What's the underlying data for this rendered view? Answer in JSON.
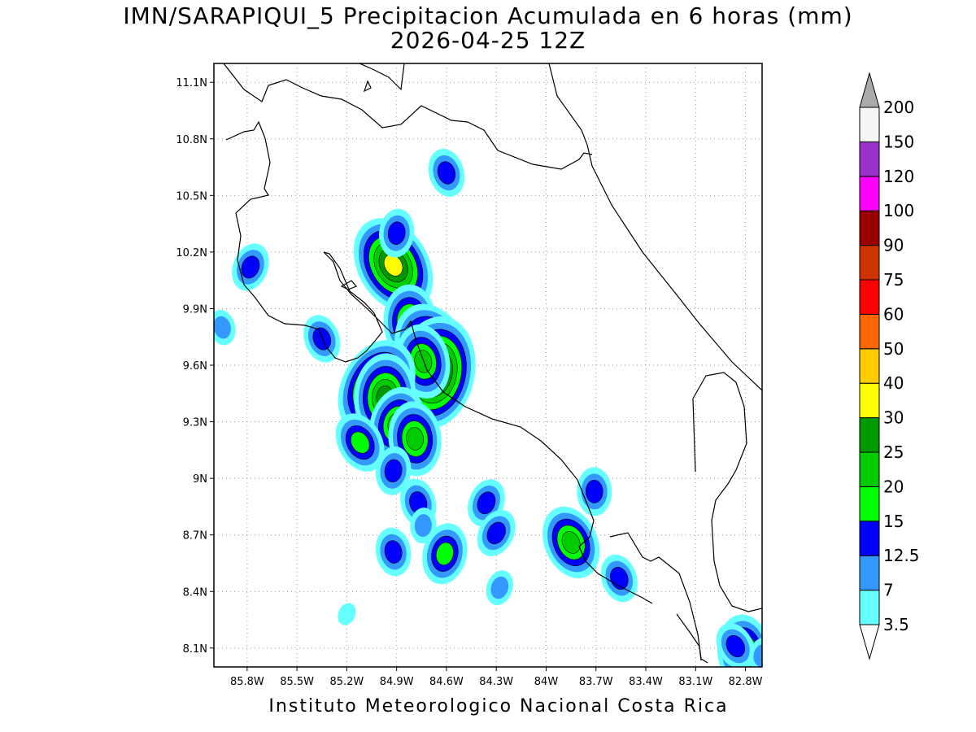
{
  "title": "IMN/SARAPIQUI_5 Precipitacion Acumulada en 6 horas (mm)",
  "subtitle": "2026-04-25 12Z",
  "footer": "Instituto Meteorologico Nacional Costa Rica",
  "map": {
    "lon_range": [
      -86.0,
      -82.7
    ],
    "lat_range": [
      8.0,
      11.2
    ],
    "grid": true,
    "lat_ticks": [
      "11.1N",
      "10.8N",
      "10.5N",
      "10.2N",
      "9.9N",
      "9.6N",
      "9.3N",
      "9N",
      "8.7N",
      "8.4N",
      "8.1N"
    ],
    "lat_values": [
      11.1,
      10.8,
      10.5,
      10.2,
      9.9,
      9.6,
      9.3,
      9.0,
      8.7,
      8.4,
      8.1
    ],
    "lon_ticks": [
      "85.8W",
      "85.5W",
      "85.2W",
      "84.9W",
      "84.6W",
      "84.3W",
      "84W",
      "83.7W",
      "83.4W",
      "83.1W",
      "82.8W"
    ],
    "lon_values": [
      -85.8,
      -85.5,
      -85.2,
      -84.9,
      -84.6,
      -84.3,
      -84.0,
      -83.7,
      -83.4,
      -83.1,
      -82.8
    ]
  },
  "colorbar": {
    "labels": [
      "3.5",
      "7",
      "12.5",
      "15",
      "20",
      "25",
      "30",
      "40",
      "50",
      "60",
      "75",
      "90",
      "100",
      "120",
      "150",
      "200"
    ],
    "colors": [
      "#ffffff",
      "#66ffff",
      "#3399ff",
      "#0000ff",
      "#00ff00",
      "#00cc00",
      "#009900",
      "#ffff00",
      "#ffcc00",
      "#ff6600",
      "#ff0000",
      "#cc3300",
      "#990000",
      "#ff00ff",
      "#9933cc",
      "#f5f5f5",
      "#aaaaaa"
    ]
  },
  "precip_cells": [
    {
      "lon": -84.92,
      "lat": 10.13,
      "level": 7
    },
    {
      "lon": -84.9,
      "lat": 10.3,
      "level": 3
    },
    {
      "lon": -84.6,
      "lat": 10.62,
      "level": 3
    },
    {
      "lon": -85.78,
      "lat": 10.12,
      "level": 3
    },
    {
      "lon": -84.82,
      "lat": 9.83,
      "level": 5
    },
    {
      "lon": -84.68,
      "lat": 9.67,
      "level": 7
    },
    {
      "lon": -84.67,
      "lat": 9.56,
      "level": 8
    },
    {
      "lon": -84.74,
      "lat": 9.62,
      "level": 5
    },
    {
      "lon": -85.02,
      "lat": 9.48,
      "level": 7
    },
    {
      "lon": -84.97,
      "lat": 9.43,
      "level": 6
    },
    {
      "lon": -85.35,
      "lat": 9.74,
      "level": 3
    },
    {
      "lon": -84.9,
      "lat": 9.29,
      "level": 5
    },
    {
      "lon": -84.79,
      "lat": 9.21,
      "level": 5
    },
    {
      "lon": -85.12,
      "lat": 9.19,
      "level": 4
    },
    {
      "lon": -84.92,
      "lat": 9.04,
      "level": 3
    },
    {
      "lon": -84.77,
      "lat": 8.87,
      "level": 3
    },
    {
      "lon": -84.36,
      "lat": 8.87,
      "level": 3
    },
    {
      "lon": -83.71,
      "lat": 8.93,
      "level": 3
    },
    {
      "lon": -83.85,
      "lat": 8.66,
      "level": 5
    },
    {
      "lon": -84.61,
      "lat": 8.6,
      "level": 4
    },
    {
      "lon": -84.92,
      "lat": 8.61,
      "level": 3
    },
    {
      "lon": -84.3,
      "lat": 8.71,
      "level": 3
    },
    {
      "lon": -84.74,
      "lat": 8.75,
      "level": 2
    },
    {
      "lon": -83.56,
      "lat": 8.47,
      "level": 3
    },
    {
      "lon": -84.28,
      "lat": 8.42,
      "level": 2
    },
    {
      "lon": -82.81,
      "lat": 8.08,
      "level": 5
    },
    {
      "lon": -82.86,
      "lat": 8.11,
      "level": 3
    },
    {
      "lon": -82.7,
      "lat": 8.06,
      "level": 2
    },
    {
      "lon": -85.95,
      "lat": 9.8,
      "level": 2
    },
    {
      "lon": -85.2,
      "lat": 8.28,
      "level": 1
    }
  ]
}
